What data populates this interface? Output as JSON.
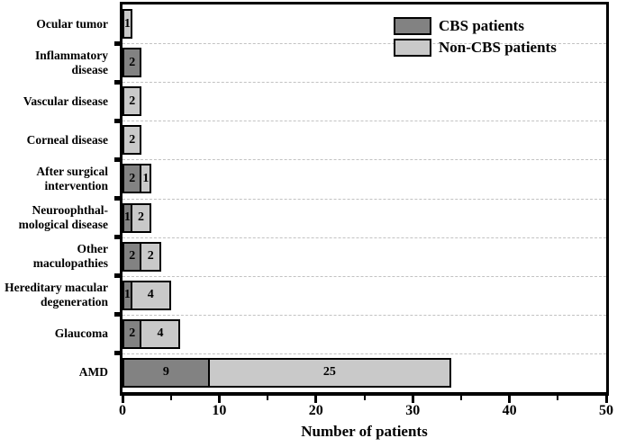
{
  "chart_data": {
    "type": "bar",
    "orientation": "horizontal",
    "stacked": true,
    "xlabel": "Number of patients",
    "xlim": [
      0,
      50
    ],
    "x_major_ticks": [
      0,
      10,
      20,
      30,
      40,
      50
    ],
    "x_minor_ticks": [
      5,
      15,
      25,
      35,
      45
    ],
    "gridlines": "dashed-at-category-boundaries",
    "legend_position": "top-right",
    "bar_value_labels": true,
    "categories": [
      "Ocular tumor",
      "Inflammatory disease",
      "Vascular disease",
      "Corneal disease",
      "After surgical intervention",
      "Neuroophthal-mological disease",
      "Other maculopathies",
      "Hereditary macular degeneration",
      "Glaucoma",
      "AMD"
    ],
    "categories_display": [
      [
        "Ocular tumor"
      ],
      [
        "Inflammatory",
        "disease"
      ],
      [
        "Vascular disease"
      ],
      [
        "Corneal disease"
      ],
      [
        "After surgical",
        "intervention"
      ],
      [
        "Neuroophthal-",
        "mological disease"
      ],
      [
        "Other",
        "maculopathies"
      ],
      [
        "Hereditary macular",
        "degeneration"
      ],
      [
        "Glaucoma"
      ],
      [
        "AMD"
      ]
    ],
    "series": [
      {
        "name": "CBS patients",
        "color": "#828282",
        "values": [
          0,
          2,
          0,
          0,
          2,
          1,
          2,
          1,
          2,
          9
        ]
      },
      {
        "name": "Non-CBS patients",
        "color": "#c9c9c9",
        "values": [
          1,
          0,
          2,
          2,
          1,
          2,
          2,
          4,
          4,
          25
        ]
      }
    ]
  },
  "legend": {
    "items": [
      {
        "label": "CBS patients",
        "color": "#828282"
      },
      {
        "label": "Non-CBS patients",
        "color": "#c9c9c9"
      }
    ]
  },
  "colors": {
    "bar_border": "#000000",
    "axis": "#000000",
    "gridline": "#c2c2c2",
    "text": "#000000",
    "background": "#ffffff"
  }
}
